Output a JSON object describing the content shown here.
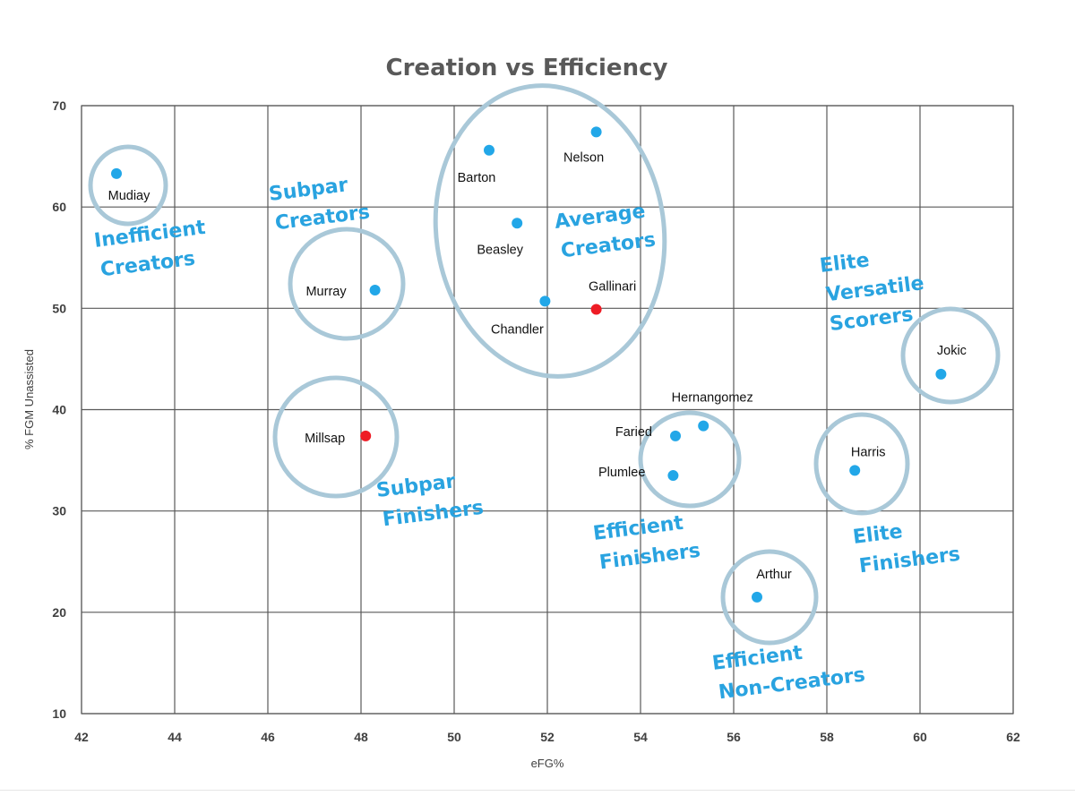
{
  "colors": {
    "point": "#22a7e8",
    "point_highlight": "#ee1c25",
    "annotation_text": "#29a3e0",
    "ring": "#a9c8d8",
    "grid": "#595959"
  },
  "chart_data": {
    "type": "scatter",
    "title": "Creation vs Efficiency",
    "xlabel": "eFG%",
    "ylabel": "% FGM Unassisted",
    "xlim": [
      42,
      62
    ],
    "ylim": [
      10,
      70
    ],
    "xticks": [
      42,
      44,
      46,
      48,
      50,
      52,
      54,
      56,
      58,
      60,
      62
    ],
    "yticks": [
      10,
      20,
      30,
      40,
      50,
      60,
      70
    ],
    "grid": true,
    "points": [
      {
        "label": "Mudiay",
        "x": 42.75,
        "y": 63.3,
        "highlight": false
      },
      {
        "label": "Murray",
        "x": 48.3,
        "y": 51.8,
        "highlight": false
      },
      {
        "label": "Millsap",
        "x": 48.1,
        "y": 37.4,
        "highlight": true
      },
      {
        "label": "Barton",
        "x": 50.75,
        "y": 65.6,
        "highlight": false
      },
      {
        "label": "Nelson",
        "x": 53.05,
        "y": 67.4,
        "highlight": false
      },
      {
        "label": "Beasley",
        "x": 51.35,
        "y": 58.4,
        "highlight": false
      },
      {
        "label": "Chandler",
        "x": 51.95,
        "y": 50.7,
        "highlight": false
      },
      {
        "label": "Gallinari",
        "x": 53.05,
        "y": 49.9,
        "highlight": true
      },
      {
        "label": "Hernangomez",
        "x": 55.35,
        "y": 38.4,
        "highlight": false
      },
      {
        "label": "Faried",
        "x": 54.75,
        "y": 37.4,
        "highlight": false
      },
      {
        "label": "Plumlee",
        "x": 54.7,
        "y": 33.5,
        "highlight": false
      },
      {
        "label": "Harris",
        "x": 58.6,
        "y": 34.0,
        "highlight": false
      },
      {
        "label": "Jokic",
        "x": 60.45,
        "y": 43.5,
        "highlight": false
      },
      {
        "label": "Arthur",
        "x": 56.5,
        "y": 21.5,
        "highlight": false
      }
    ],
    "annotations": [
      {
        "lines": [
          "Inefficient",
          "Creators"
        ]
      },
      {
        "lines": [
          "Subpar",
          "Creators"
        ]
      },
      {
        "lines": [
          "Subpar",
          "Finishers"
        ]
      },
      {
        "lines": [
          "Average",
          "Creators"
        ]
      },
      {
        "lines": [
          "Efficient",
          "Finishers"
        ]
      },
      {
        "lines": [
          "Efficient",
          "Non-Creators"
        ]
      },
      {
        "lines": [
          "Elite",
          "Versatile",
          "Scorers"
        ]
      },
      {
        "lines": [
          "Elite",
          "Finishers"
        ]
      }
    ]
  }
}
